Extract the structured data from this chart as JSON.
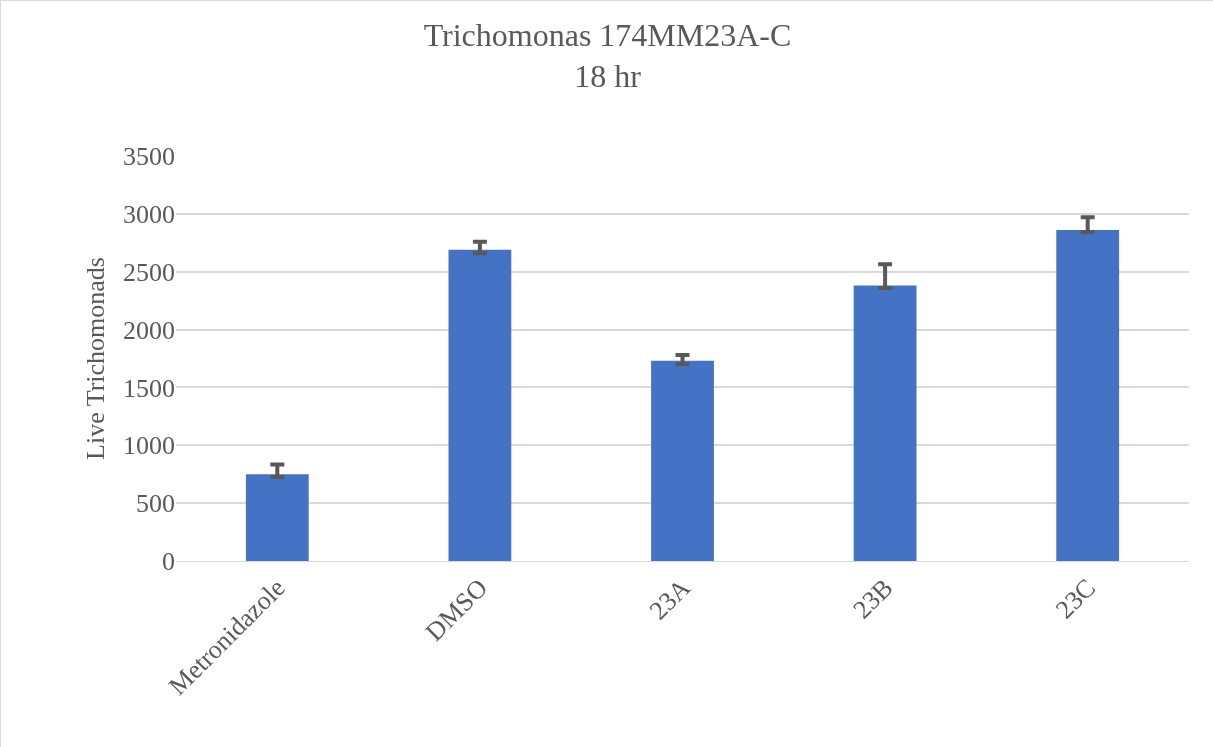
{
  "chart_data": {
    "type": "bar",
    "title": "Trichomonas 174MM23A-C\n18 hr",
    "ylabel": "Live Trichomonads",
    "categories": [
      "Metronidazole",
      "DMSO",
      "23A",
      "23B",
      "23C"
    ],
    "values": [
      750,
      2690,
      1730,
      2380,
      2860
    ],
    "errors": [
      [
        725,
        835
      ],
      [
        2660,
        2760
      ],
      [
        1700,
        1780
      ],
      [
        2360,
        2565
      ],
      [
        2840,
        2970
      ]
    ],
    "color": "#4472c4",
    "ylim": [
      0,
      3500
    ],
    "yticks": [
      0,
      500,
      1000,
      1500,
      2000,
      2500,
      3000,
      3500
    ],
    "grid": "y",
    "legend": false
  }
}
